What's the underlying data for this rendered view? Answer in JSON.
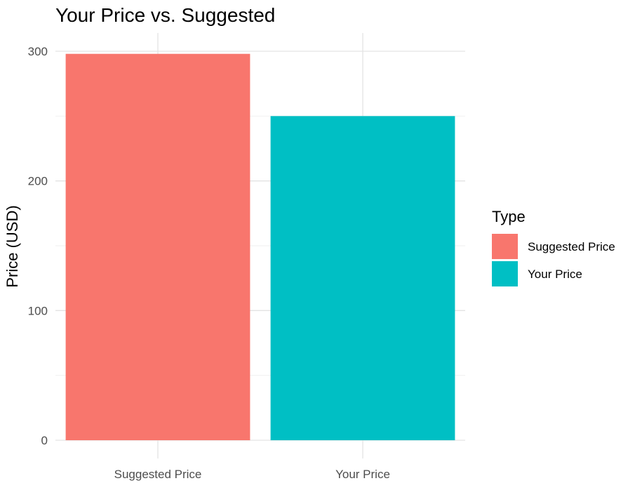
{
  "chart_data": {
    "type": "bar",
    "title": "Your Price vs. Suggested",
    "xlabel": "",
    "ylabel": "Price (USD)",
    "categories": [
      "Suggested Price",
      "Your Price"
    ],
    "values": [
      298,
      250
    ],
    "colors": [
      "#F8766D",
      "#00BFC4"
    ],
    "ylim": [
      0,
      300
    ],
    "yticks": [
      0,
      100,
      200,
      300
    ],
    "grid": true,
    "legend": {
      "title": "Type",
      "position": "right",
      "entries": [
        "Suggested Price",
        "Your Price"
      ]
    }
  }
}
